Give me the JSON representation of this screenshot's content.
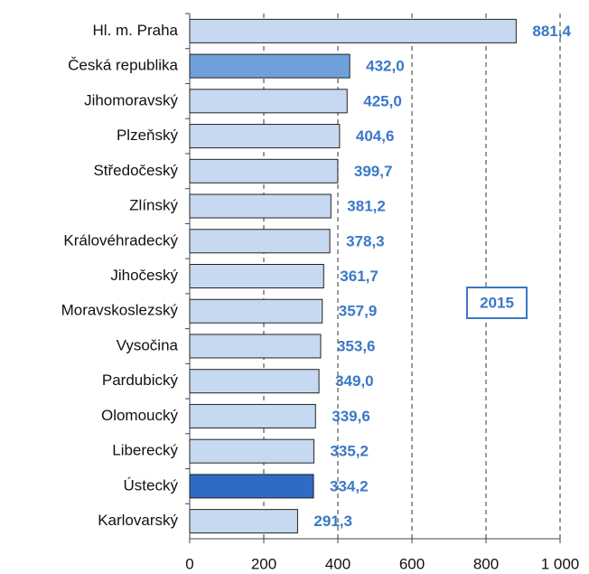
{
  "chart_data": {
    "type": "bar",
    "orientation": "horizontal",
    "categories": [
      "Hl. m. Praha",
      "Česká republika",
      "Jihomoravský",
      "Plzeňský",
      "Středočeský",
      "Zlínský",
      "Královéhradecký",
      "Jihočeský",
      "Moravskoslezský",
      "Vysočina",
      "Pardubický",
      "Olomoucký",
      "Liberecký",
      "Ústecký",
      "Karlovarský"
    ],
    "values": [
      881.4,
      432.0,
      425.0,
      404.6,
      399.7,
      381.2,
      378.3,
      361.7,
      357.9,
      353.6,
      349.0,
      339.6,
      335.2,
      334.2,
      291.3
    ],
    "value_labels": [
      "881,4",
      "432,0",
      "425,0",
      "404,6",
      "399,7",
      "381,2",
      "378,3",
      "361,7",
      "357,9",
      "353,6",
      "349,0",
      "339,6",
      "335,2",
      "334,2",
      "291,3"
    ],
    "colors": [
      "#c6d9f1",
      "#6fa0dc",
      "#c6d9f1",
      "#c6d9f1",
      "#c6d9f1",
      "#c6d9f1",
      "#c6d9f1",
      "#c6d9f1",
      "#c6d9f1",
      "#c6d9f1",
      "#c6d9f1",
      "#c6d9f1",
      "#c6d9f1",
      "#2e6bc4",
      "#c6d9f1"
    ],
    "xlim": [
      0,
      1000
    ],
    "xticks": [
      0,
      200,
      400,
      600,
      800,
      {
        "value": 1000,
        "label": "1 000"
      }
    ],
    "grid": true,
    "annotation": "2015"
  }
}
